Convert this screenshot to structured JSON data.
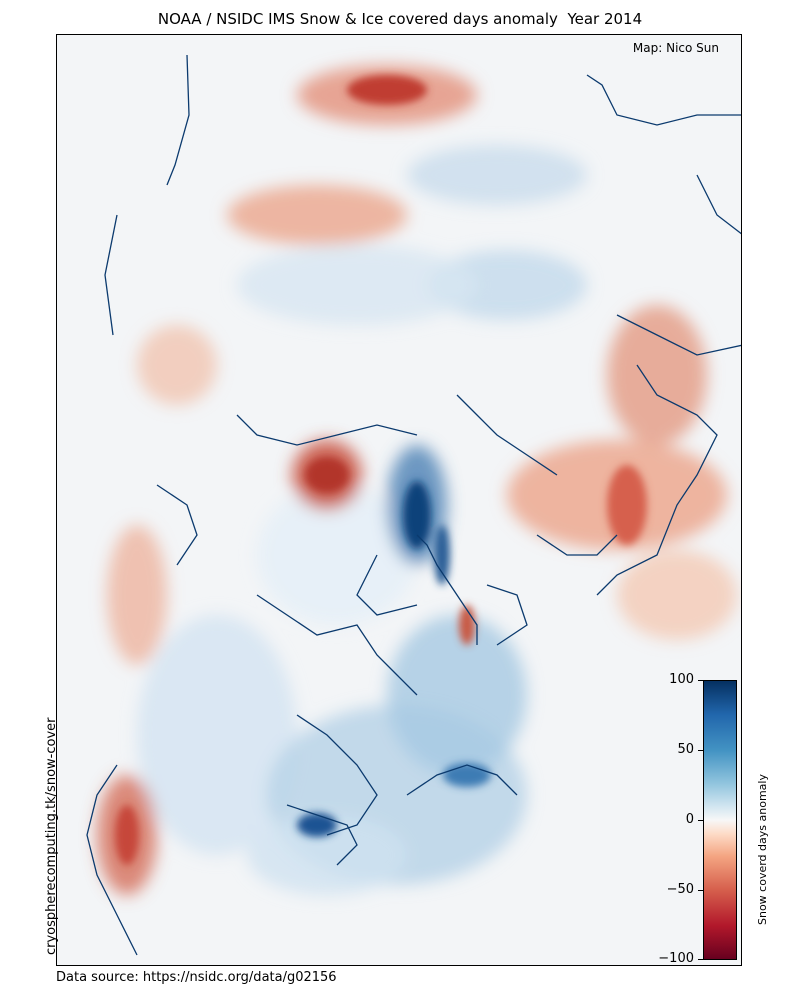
{
  "title": "NOAA / NSIDC IMS Snow & Ice covered days anomaly  Year 2014",
  "credit": "Map: Nico Sun",
  "side_label": "cryospherecomputing.tk/snow-cover",
  "source": "Data source: https://nsidc.org/data/g02156",
  "colorbar": {
    "label": "Snow coverd days anomaly",
    "ticks": [
      "100",
      "50",
      "0",
      "−50",
      "−100"
    ],
    "range": [
      -100,
      100
    ],
    "colors": {
      "positive": "#053061",
      "neutral": "#f7f7f7",
      "negative": "#67001f"
    }
  }
}
